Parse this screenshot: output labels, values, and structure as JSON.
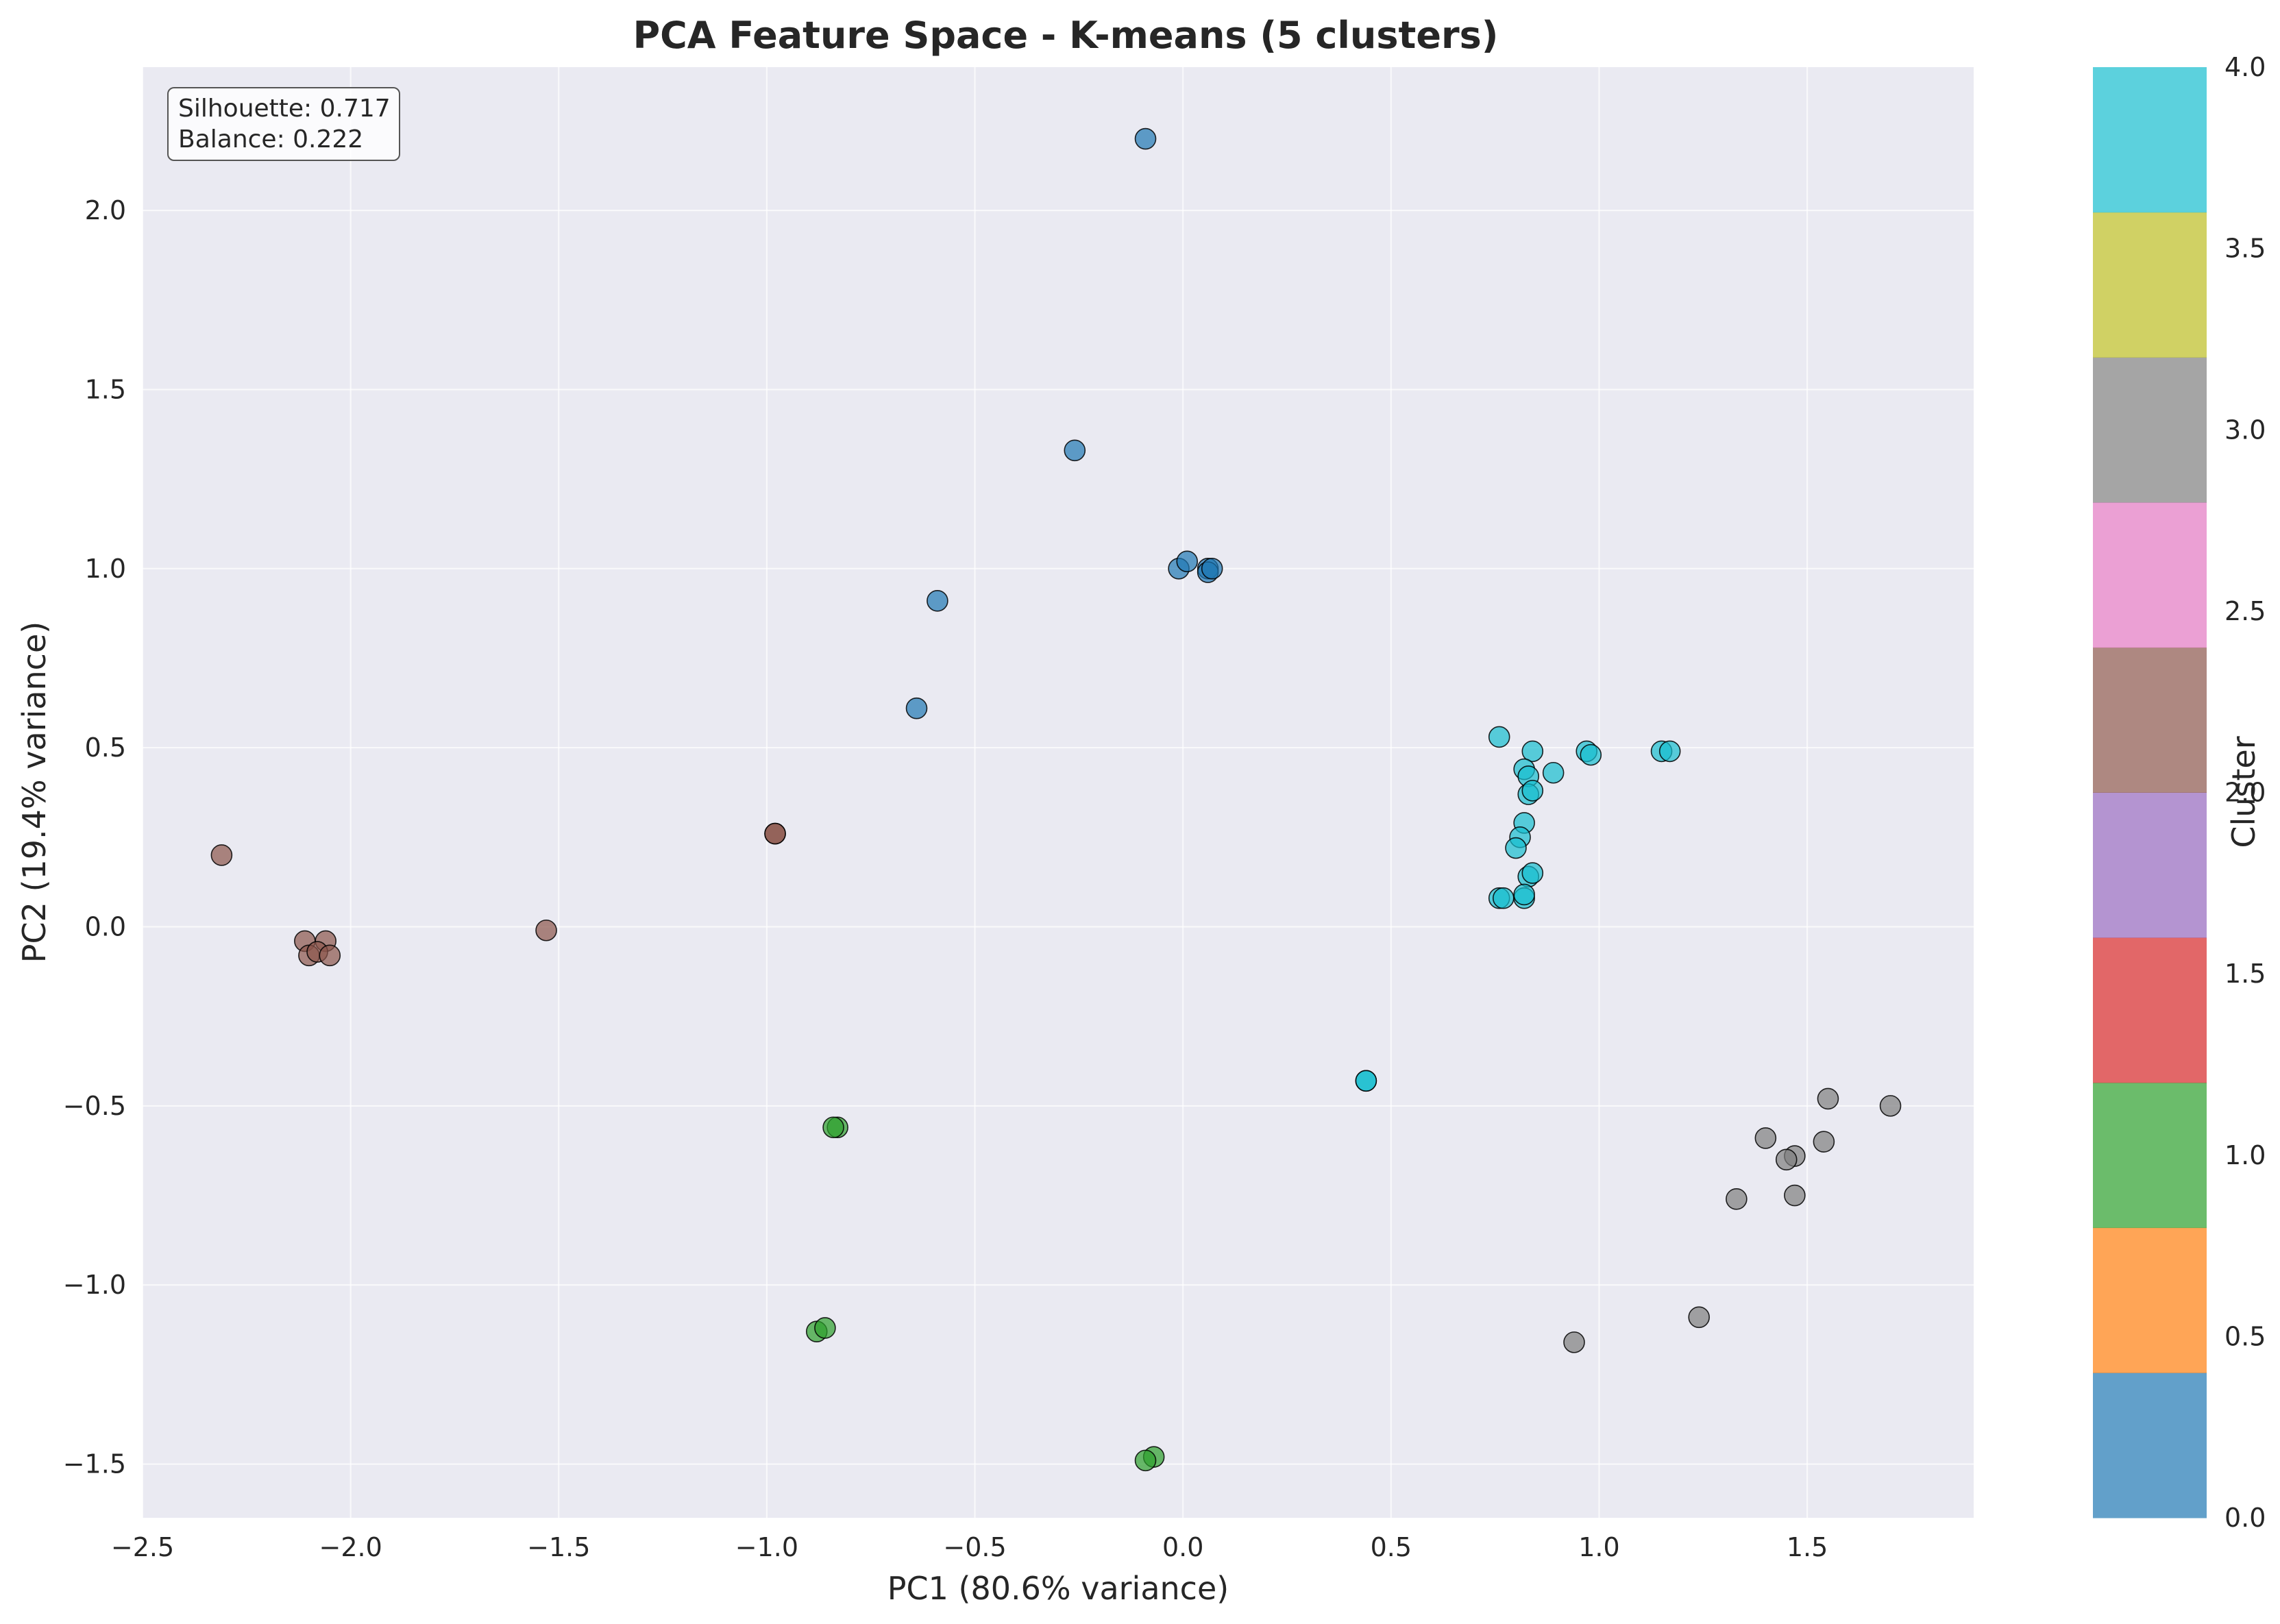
{
  "chart_data": {
    "type": "scatter",
    "title": "PCA Feature Space - K-means (5 clusters)",
    "xlabel": "PC1 (80.6% variance)",
    "ylabel": "PC2 (19.4% variance)",
    "xlim": [
      -2.5,
      1.9
    ],
    "ylim": [
      -1.65,
      2.4
    ],
    "xticks": [
      -2.5,
      -2.0,
      -1.5,
      -1.0,
      -0.5,
      0.0,
      0.5,
      1.0,
      1.5
    ],
    "xtick_labels": [
      "−2.5",
      "−2.0",
      "−1.5",
      "−1.0",
      "−0.5",
      "0.0",
      "0.5",
      "1.0",
      "1.5"
    ],
    "yticks": [
      -1.5,
      -1.0,
      -0.5,
      0.0,
      0.5,
      1.0,
      1.5,
      2.0
    ],
    "ytick_labels": [
      "−1.5",
      "−1.0",
      "−0.5",
      "0.0",
      "0.5",
      "1.0",
      "1.5",
      "2.0"
    ],
    "grid": true,
    "background_color": "#eaeaf2",
    "point_alpha": 0.7,
    "cluster_colors": [
      "#1f77b4",
      "#2ca02c",
      "#8c564b",
      "#7f7f7f",
      "#17becf"
    ],
    "annotation": {
      "lines": [
        "Silhouette: 0.717",
        "Balance: 0.222"
      ],
      "position": "top-left"
    },
    "colorbar": {
      "label": "Cluster",
      "range": [
        0.0,
        4.0
      ],
      "ticks": [
        0.0,
        0.5,
        1.0,
        1.5,
        2.0,
        2.5,
        3.0,
        3.5,
        4.0
      ],
      "tick_labels": [
        "0.0",
        "0.5",
        "1.0",
        "1.5",
        "2.0",
        "2.5",
        "3.0",
        "3.5",
        "4.0"
      ],
      "segment_colors": [
        "#1f77b4",
        "#ff7f0e",
        "#2ca02c",
        "#d62728",
        "#9467bd",
        "#8c564b",
        "#e377c2",
        "#7f7f7f",
        "#bcbd22",
        "#17becf"
      ]
    },
    "series": [
      {
        "cluster": 0,
        "color": "#1f77b4",
        "points": [
          [
            -0.09,
            2.2
          ],
          [
            -0.26,
            1.33
          ],
          [
            -0.59,
            0.91
          ],
          [
            -0.64,
            0.61
          ],
          [
            -0.01,
            1.0
          ],
          [
            0.01,
            1.02
          ],
          [
            0.06,
            1.0
          ],
          [
            0.06,
            0.99
          ],
          [
            0.07,
            1.0
          ]
        ]
      },
      {
        "cluster": 1,
        "color": "#2ca02c",
        "points": [
          [
            -0.83,
            -0.56
          ],
          [
            -0.84,
            -0.56
          ],
          [
            -0.88,
            -1.13
          ],
          [
            -0.86,
            -1.12
          ],
          [
            -0.07,
            -1.48
          ],
          [
            -0.09,
            -1.49
          ]
        ]
      },
      {
        "cluster": 2,
        "color": "#8c564b",
        "points": [
          [
            -2.31,
            0.2
          ],
          [
            -2.11,
            -0.04
          ],
          [
            -2.06,
            -0.04
          ],
          [
            -2.1,
            -0.08
          ],
          [
            -2.08,
            -0.07
          ],
          [
            -2.05,
            -0.08
          ],
          [
            -1.53,
            -0.01
          ],
          [
            -0.98,
            0.26
          ],
          [
            -0.98,
            0.26
          ]
        ]
      },
      {
        "cluster": 3,
        "color": "#7f7f7f",
        "points": [
          [
            1.55,
            -0.48
          ],
          [
            1.7,
            -0.5
          ],
          [
            1.4,
            -0.59
          ],
          [
            1.54,
            -0.6
          ],
          [
            1.47,
            -0.64
          ],
          [
            1.45,
            -0.65
          ],
          [
            1.33,
            -0.76
          ],
          [
            1.47,
            -0.75
          ],
          [
            1.24,
            -1.09
          ],
          [
            0.94,
            -1.16
          ]
        ]
      },
      {
        "cluster": 4,
        "color": "#17becf",
        "points": [
          [
            0.76,
            0.53
          ],
          [
            0.84,
            0.49
          ],
          [
            0.97,
            0.49
          ],
          [
            0.98,
            0.48
          ],
          [
            1.15,
            0.49
          ],
          [
            1.17,
            0.49
          ],
          [
            0.82,
            0.44
          ],
          [
            0.83,
            0.42
          ],
          [
            0.89,
            0.43
          ],
          [
            0.83,
            0.37
          ],
          [
            0.84,
            0.38
          ],
          [
            0.82,
            0.29
          ],
          [
            0.81,
            0.25
          ],
          [
            0.8,
            0.22
          ],
          [
            0.83,
            0.14
          ],
          [
            0.84,
            0.15
          ],
          [
            0.76,
            0.08
          ],
          [
            0.77,
            0.08
          ],
          [
            0.82,
            0.08
          ],
          [
            0.82,
            0.09
          ],
          [
            0.44,
            -0.43
          ],
          [
            0.44,
            -0.43
          ]
        ]
      }
    ]
  }
}
